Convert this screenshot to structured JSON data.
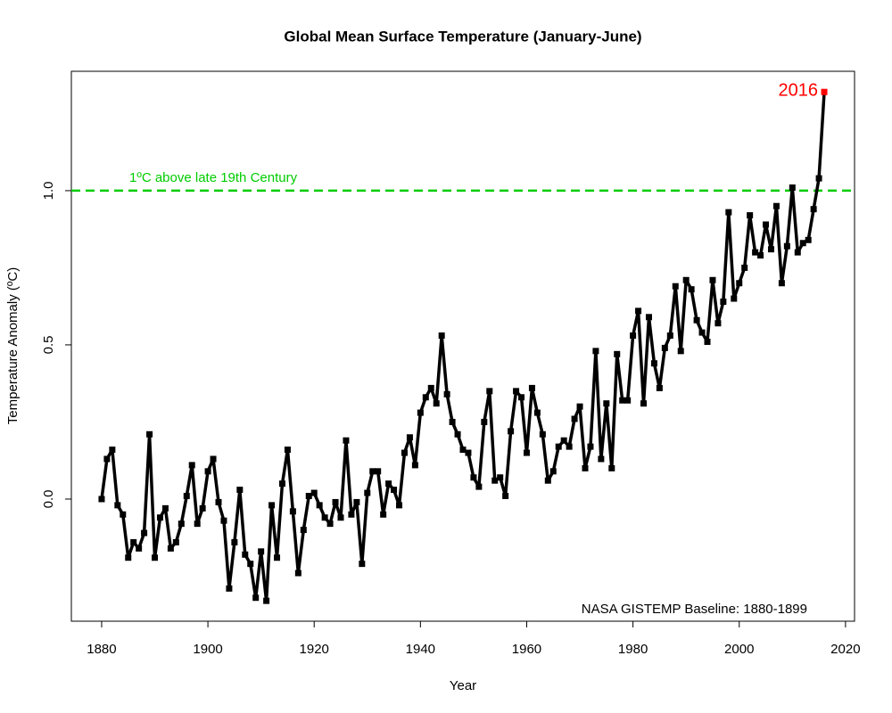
{
  "chart_data": {
    "type": "line",
    "title": "Global Mean Surface Temperature (January-June)",
    "x_label": "Year",
    "y_label": "Temperature Anomaly (ºC)",
    "annotation": "NASA GISTEMP Baseline: 1880-1899",
    "reference_line": {
      "value": 1,
      "label": "1ºC above late 19th Century",
      "color": "#00cc00"
    },
    "highlight_color": "#ff0000",
    "x": [
      1880,
      1881,
      1882,
      1883,
      1884,
      1885,
      1886,
      1887,
      1888,
      1889,
      1890,
      1891,
      1892,
      1893,
      1894,
      1895,
      1896,
      1897,
      1898,
      1899,
      1900,
      1901,
      1902,
      1903,
      1904,
      1905,
      1906,
      1907,
      1908,
      1909,
      1910,
      1911,
      1912,
      1913,
      1914,
      1915,
      1916,
      1917,
      1918,
      1919,
      1920,
      1921,
      1922,
      1923,
      1924,
      1925,
      1926,
      1927,
      1928,
      1929,
      1930,
      1931,
      1932,
      1933,
      1934,
      1935,
      1936,
      1937,
      1938,
      1939,
      1940,
      1941,
      1942,
      1943,
      1944,
      1945,
      1946,
      1947,
      1948,
      1949,
      1950,
      1951,
      1952,
      1953,
      1954,
      1955,
      1956,
      1957,
      1958,
      1959,
      1960,
      1961,
      1962,
      1963,
      1964,
      1965,
      1966,
      1967,
      1968,
      1969,
      1970,
      1971,
      1972,
      1973,
      1974,
      1975,
      1976,
      1977,
      1978,
      1979,
      1980,
      1981,
      1982,
      1983,
      1984,
      1985,
      1986,
      1987,
      1988,
      1989,
      1990,
      1991,
      1992,
      1993,
      1994,
      1995,
      1996,
      1997,
      1998,
      1999,
      2000,
      2001,
      2002,
      2003,
      2004,
      2005,
      2006,
      2007,
      2008,
      2009,
      2010,
      2011,
      2012,
      2013,
      2014,
      2015,
      2016
    ],
    "series": [
      {
        "name": "Temperature Anomaly",
        "color": "#000000",
        "values": [
          0.0,
          0.13,
          0.16,
          -0.02,
          -0.05,
          -0.19,
          -0.14,
          -0.16,
          -0.11,
          0.21,
          -0.19,
          -0.06,
          -0.03,
          -0.16,
          -0.14,
          -0.08,
          0.01,
          0.11,
          -0.08,
          -0.03,
          0.09,
          0.13,
          -0.01,
          -0.07,
          -0.29,
          -0.14,
          0.03,
          -0.18,
          -0.21,
          -0.32,
          -0.17,
          -0.33,
          -0.02,
          -0.19,
          0.05,
          0.16,
          -0.04,
          -0.24,
          -0.1,
          0.01,
          0.02,
          -0.02,
          -0.06,
          -0.08,
          -0.01,
          -0.06,
          0.19,
          -0.05,
          -0.01,
          -0.21,
          0.02,
          0.09,
          0.09,
          -0.05,
          0.05,
          0.03,
          -0.02,
          0.15,
          0.2,
          0.11,
          0.28,
          0.33,
          0.36,
          0.31,
          0.53,
          0.34,
          0.25,
          0.21,
          0.16,
          0.15,
          0.07,
          0.04,
          0.25,
          0.35,
          0.06,
          0.07,
          0.01,
          0.22,
          0.35,
          0.33,
          0.15,
          0.36,
          0.28,
          0.21,
          0.06,
          0.09,
          0.17,
          0.19,
          0.17,
          0.26,
          0.3,
          0.1,
          0.17,
          0.48,
          0.13,
          0.31,
          0.1,
          0.47,
          0.32,
          0.32,
          0.53,
          0.61,
          0.31,
          0.59,
          0.44,
          0.36,
          0.49,
          0.53,
          0.69,
          0.48,
          0.71,
          0.68,
          0.58,
          0.54,
          0.51,
          0.71,
          0.57,
          0.64,
          0.93,
          0.65,
          0.7,
          0.75,
          0.92,
          0.8,
          0.79,
          0.89,
          0.81,
          0.95,
          0.7,
          0.82,
          1.01,
          0.8,
          0.83,
          0.84,
          0.94,
          1.04,
          1.32
        ]
      }
    ],
    "xlim": [
      1874.3,
      2021.7
    ],
    "ylim": [
      -0.396,
      1.387
    ],
    "xticks": [
      1880,
      1900,
      1920,
      1940,
      1960,
      1980,
      2000,
      2020
    ],
    "yticks": [
      {
        "value": 0,
        "label": "0.0"
      },
      {
        "value": 0.5,
        "label": "0.5"
      },
      {
        "value": 1,
        "label": "1.0"
      }
    ]
  }
}
